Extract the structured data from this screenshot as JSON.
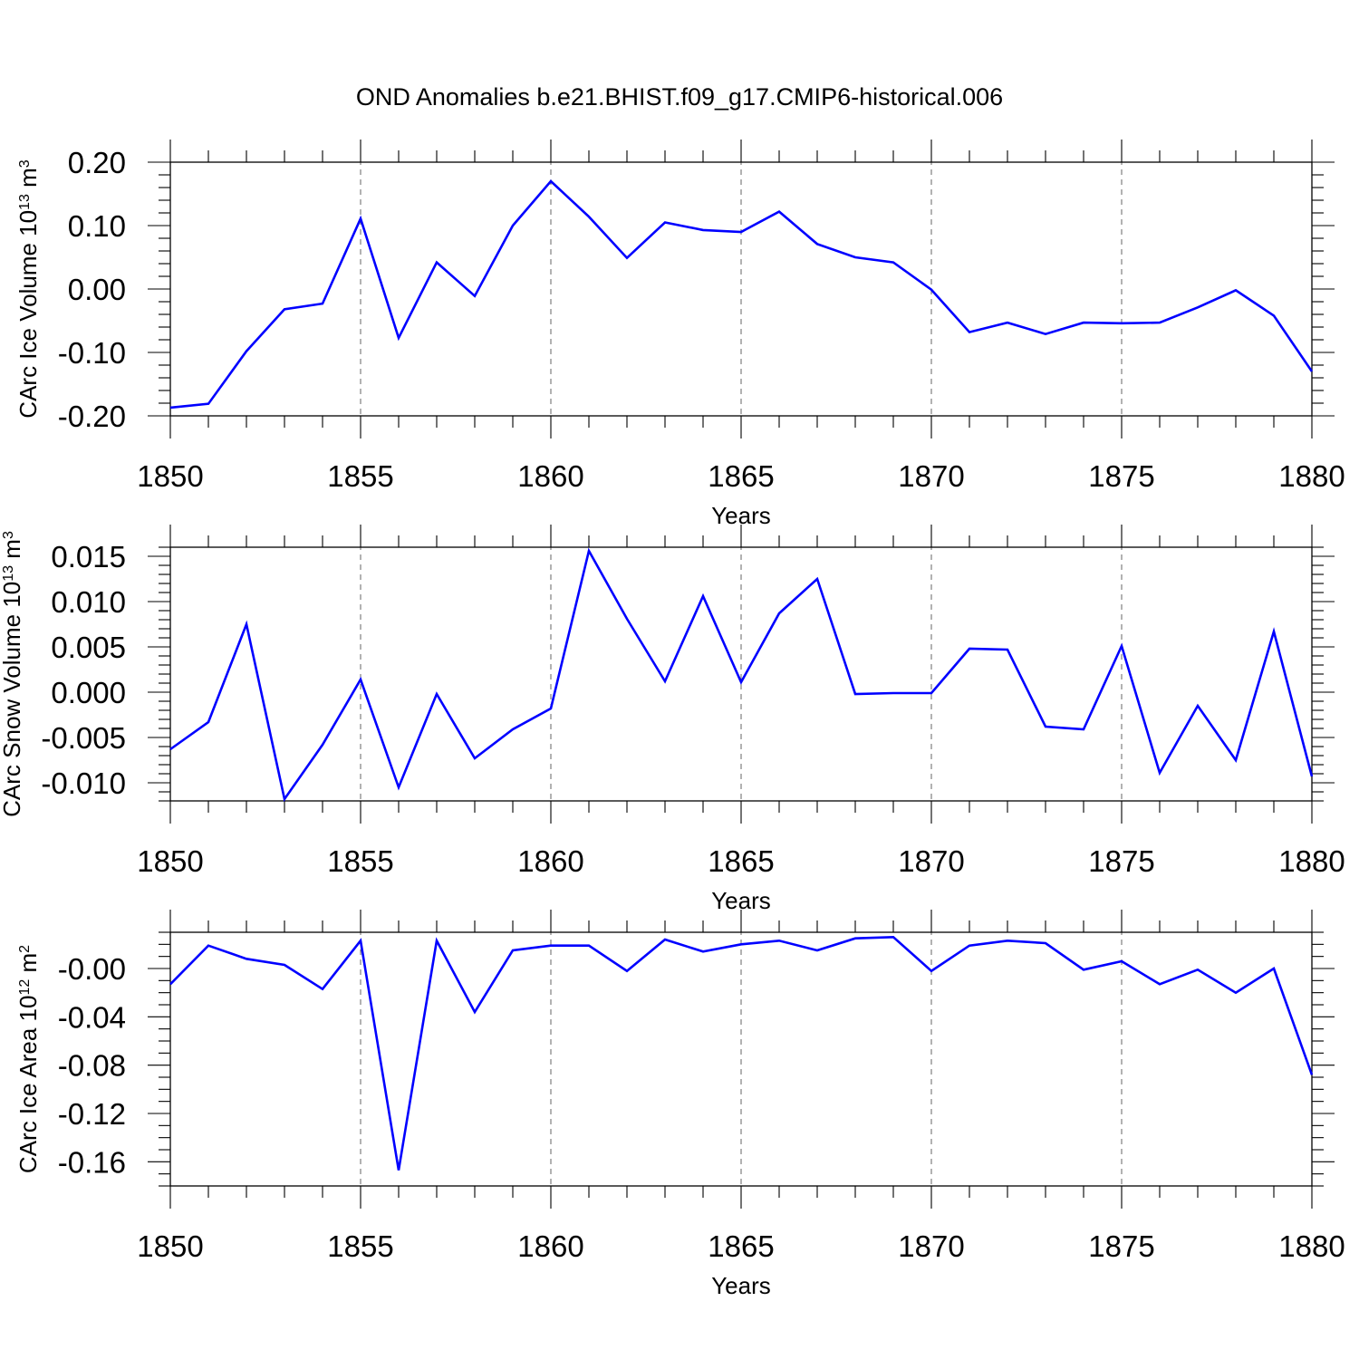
{
  "title": "OND Anomalies b.e21.BHIST.f09_g17.CMIP6-historical.006",
  "colors": {
    "series": "#0000ff",
    "axes": "#000000",
    "grid": "#666666"
  },
  "chart_data": [
    {
      "type": "line",
      "name": "ice-volume",
      "ylabel_main": "CArc Ice Volume 10",
      "ylabel_exp": "13",
      "ylabel_unit": " m",
      "ylabel_unit_exp": "3",
      "xlabel": "Years",
      "xlim": [
        1850,
        1880
      ],
      "ylim": [
        -0.2,
        0.2
      ],
      "xticks": [
        1850,
        1855,
        1860,
        1865,
        1870,
        1875,
        1880
      ],
      "xtick_labels": [
        "1850",
        "1855",
        "1860",
        "1865",
        "1870",
        "1875",
        "1880"
      ],
      "yticks": [
        -0.2,
        -0.1,
        0.0,
        0.1,
        0.2
      ],
      "ytick_labels": [
        "-0.20",
        "-0.10",
        "0.00",
        "0.10",
        "0.20"
      ],
      "yminor_step": 0.02,
      "grid": "x-dashed",
      "x": [
        1850,
        1851,
        1852,
        1853,
        1854,
        1855,
        1856,
        1857,
        1858,
        1859,
        1860,
        1861,
        1862,
        1863,
        1864,
        1865,
        1866,
        1867,
        1868,
        1869,
        1870,
        1871,
        1872,
        1873,
        1874,
        1875,
        1876,
        1877,
        1878,
        1879,
        1880
      ],
      "values": [
        -0.187,
        -0.181,
        -0.098,
        -0.032,
        -0.023,
        0.111,
        -0.077,
        0.042,
        -0.011,
        0.1,
        0.17,
        0.114,
        0.049,
        0.105,
        0.093,
        0.09,
        0.122,
        0.071,
        0.05,
        0.042,
        -0.001,
        -0.068,
        -0.053,
        -0.071,
        -0.053,
        -0.054,
        -0.053,
        -0.029,
        -0.002,
        -0.042,
        -0.13
      ]
    },
    {
      "type": "line",
      "name": "snow-volume",
      "ylabel_main": "CArc Snow Volume 10",
      "ylabel_exp": "13",
      "ylabel_unit": " m",
      "ylabel_unit_exp": "3",
      "xlabel": "Years",
      "xlim": [
        1850,
        1880
      ],
      "ylim": [
        -0.012,
        0.016
      ],
      "xticks": [
        1850,
        1855,
        1860,
        1865,
        1870,
        1875,
        1880
      ],
      "xtick_labels": [
        "1850",
        "1855",
        "1860",
        "1865",
        "1870",
        "1875",
        "1880"
      ],
      "yticks": [
        -0.01,
        -0.005,
        0.0,
        0.005,
        0.01,
        0.015
      ],
      "ytick_labels": [
        "-0.010",
        "-0.005",
        "0.000",
        "0.005",
        "0.010",
        "0.015"
      ],
      "yminor_step": 0.001,
      "grid": "x-dashed",
      "x": [
        1850,
        1851,
        1852,
        1853,
        1854,
        1855,
        1856,
        1857,
        1858,
        1859,
        1860,
        1861,
        1862,
        1863,
        1864,
        1865,
        1866,
        1867,
        1868,
        1869,
        1870,
        1871,
        1872,
        1873,
        1874,
        1875,
        1876,
        1877,
        1878,
        1879,
        1880
      ],
      "values": [
        -0.0063,
        -0.0033,
        0.0075,
        -0.0118,
        -0.0058,
        0.0014,
        -0.0105,
        -0.0002,
        -0.0073,
        -0.0041,
        -0.0018,
        0.0156,
        0.0081,
        0.0012,
        0.0106,
        0.0011,
        0.0087,
        0.0125,
        -0.0002,
        -0.0001,
        -0.0001,
        0.0048,
        0.0047,
        -0.0038,
        -0.0041,
        0.0051,
        -0.0089,
        -0.0015,
        -0.0075,
        0.0067,
        -0.0093
      ]
    },
    {
      "type": "line",
      "name": "ice-area",
      "ylabel_main": "CArc Ice Area 10",
      "ylabel_exp": "12",
      "ylabel_unit": " m",
      "ylabel_unit_exp": "2",
      "xlabel": "Years",
      "xlim": [
        1850,
        1880
      ],
      "ylim": [
        -0.18,
        0.03
      ],
      "xticks": [
        1850,
        1855,
        1860,
        1865,
        1870,
        1875,
        1880
      ],
      "xtick_labels": [
        "1850",
        "1855",
        "1860",
        "1865",
        "1870",
        "1875",
        "1880"
      ],
      "yticks": [
        -0.16,
        -0.12,
        -0.08,
        -0.04,
        0.0
      ],
      "ytick_labels": [
        "-0.16",
        "-0.12",
        "-0.08",
        "-0.04",
        "-0.00"
      ],
      "yminor_step": 0.01,
      "grid": "x-dashed",
      "x": [
        1850,
        1851,
        1852,
        1853,
        1854,
        1855,
        1856,
        1857,
        1858,
        1859,
        1860,
        1861,
        1862,
        1863,
        1864,
        1865,
        1866,
        1867,
        1868,
        1869,
        1870,
        1871,
        1872,
        1873,
        1874,
        1875,
        1876,
        1877,
        1878,
        1879,
        1880
      ],
      "values": [
        -0.013,
        0.019,
        0.008,
        0.003,
        -0.017,
        0.023,
        -0.167,
        0.023,
        -0.036,
        0.015,
        0.019,
        0.019,
        -0.002,
        0.024,
        0.014,
        0.02,
        0.023,
        0.015,
        0.025,
        0.026,
        -0.002,
        0.019,
        0.023,
        0.021,
        -0.001,
        0.006,
        -0.013,
        -0.001,
        -0.02,
        0.0,
        -0.088
      ]
    }
  ]
}
